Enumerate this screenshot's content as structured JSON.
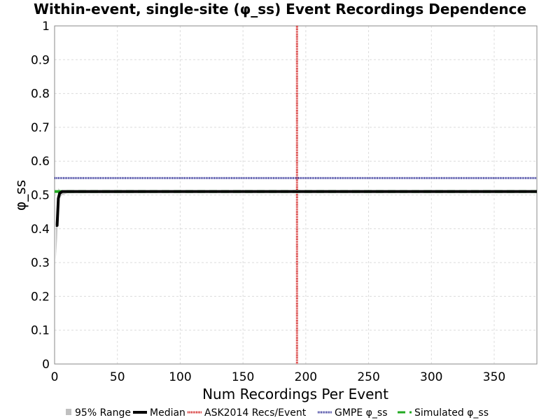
{
  "chart_data": {
    "type": "line",
    "title": "Within-event, single-site (φ_ss) Event Recordings Dependence",
    "xlabel": "Num Recordings Per Event",
    "ylabel": "φ_ss",
    "xlim": [
      0,
      384
    ],
    "ylim": [
      0,
      1
    ],
    "xticks": [
      "0",
      "50",
      "100",
      "150",
      "200",
      "250",
      "300",
      "350"
    ],
    "yticks": [
      "0",
      "0.1",
      "0.2",
      "0.3",
      "0.4",
      "0.5",
      "0.6",
      "0.7",
      "0.8",
      "0.9",
      "1"
    ],
    "grid": true,
    "legend_position": "bottom",
    "series": [
      {
        "name": "95% Range",
        "kind": "band",
        "color": "#c0c0c0",
        "x": [
          1,
          2,
          3,
          4,
          6,
          10,
          384
        ],
        "lower": [
          0.31,
          0.37,
          0.46,
          0.49,
          0.5,
          0.505,
          0.51
        ],
        "upper": [
          0.4,
          0.43,
          0.52,
          0.515,
          0.513,
          0.512,
          0.511
        ]
      },
      {
        "name": "Median",
        "kind": "line",
        "color": "#000000",
        "style": "solid",
        "x": [
          1,
          2,
          3,
          4,
          6,
          384
        ],
        "y": [
          0.41,
          0.41,
          0.49,
          0.505,
          0.51,
          0.51
        ]
      },
      {
        "name": "ASK2014 Recs/Event",
        "kind": "vline",
        "color": "#cc0000",
        "style": "dotted",
        "x": 193
      },
      {
        "name": "GMPE φ_ss",
        "kind": "hline",
        "color": "#1a1a8c",
        "style": "dotted",
        "y": 0.55
      },
      {
        "name": "Simulated φ_ss",
        "kind": "hline",
        "color": "#22aa22",
        "style": "dashed",
        "y": 0.51
      }
    ]
  }
}
